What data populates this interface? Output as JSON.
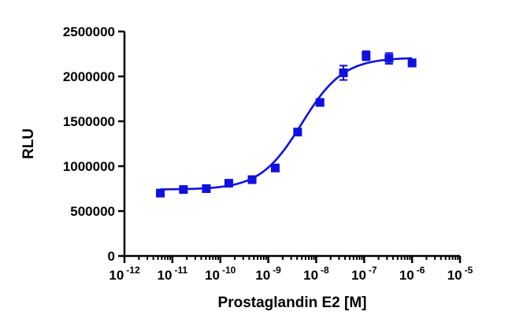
{
  "chart_data": {
    "type": "scatter",
    "title": "",
    "xlabel": "Prostaglandin E2 [M]",
    "ylabel": "RLU",
    "x_scale": "log10",
    "xlim": [
      1e-12,
      1e-05
    ],
    "ylim": [
      0,
      2500000
    ],
    "grid": false,
    "legend": "none",
    "x_ticks": [
      {
        "base": "10",
        "exp": "-12"
      },
      {
        "base": "10",
        "exp": "-11"
      },
      {
        "base": "10",
        "exp": "-10"
      },
      {
        "base": "10",
        "exp": "-9"
      },
      {
        "base": "10",
        "exp": "-8"
      },
      {
        "base": "10",
        "exp": "-7"
      },
      {
        "base": "10",
        "exp": "-6"
      },
      {
        "base": "10",
        "exp": "-5"
      }
    ],
    "y_ticks": [
      "0",
      "500000",
      "1000000",
      "1500000",
      "2000000",
      "2500000"
    ],
    "series": [
      {
        "color": "#1010e0",
        "marker": "square",
        "points": [
          {
            "x": 5.6e-12,
            "y": 700000,
            "err": 0
          },
          {
            "x": 1.7e-11,
            "y": 740000,
            "err": 0
          },
          {
            "x": 5.1e-11,
            "y": 750000,
            "err": 0
          },
          {
            "x": 1.5e-10,
            "y": 810000,
            "err": 0
          },
          {
            "x": 4.6e-10,
            "y": 850000,
            "err": 0
          },
          {
            "x": 1.4e-09,
            "y": 980000,
            "err": 0
          },
          {
            "x": 4.1e-09,
            "y": 1380000,
            "err": 0
          },
          {
            "x": 1.2e-08,
            "y": 1710000,
            "err": 0
          },
          {
            "x": 3.7e-08,
            "y": 2040000,
            "err": 80000
          },
          {
            "x": 1.1e-07,
            "y": 2230000,
            "err": 50000
          },
          {
            "x": 3.3e-07,
            "y": 2200000,
            "err": 60000
          },
          {
            "x": 1e-06,
            "y": 2150000,
            "err": 40000
          }
        ],
        "fit": {
          "model": "sigmoidal dose-response",
          "bottom": 740000,
          "top": 2210000,
          "ec50": 5e-09,
          "hill": 1.0
        }
      }
    ]
  }
}
